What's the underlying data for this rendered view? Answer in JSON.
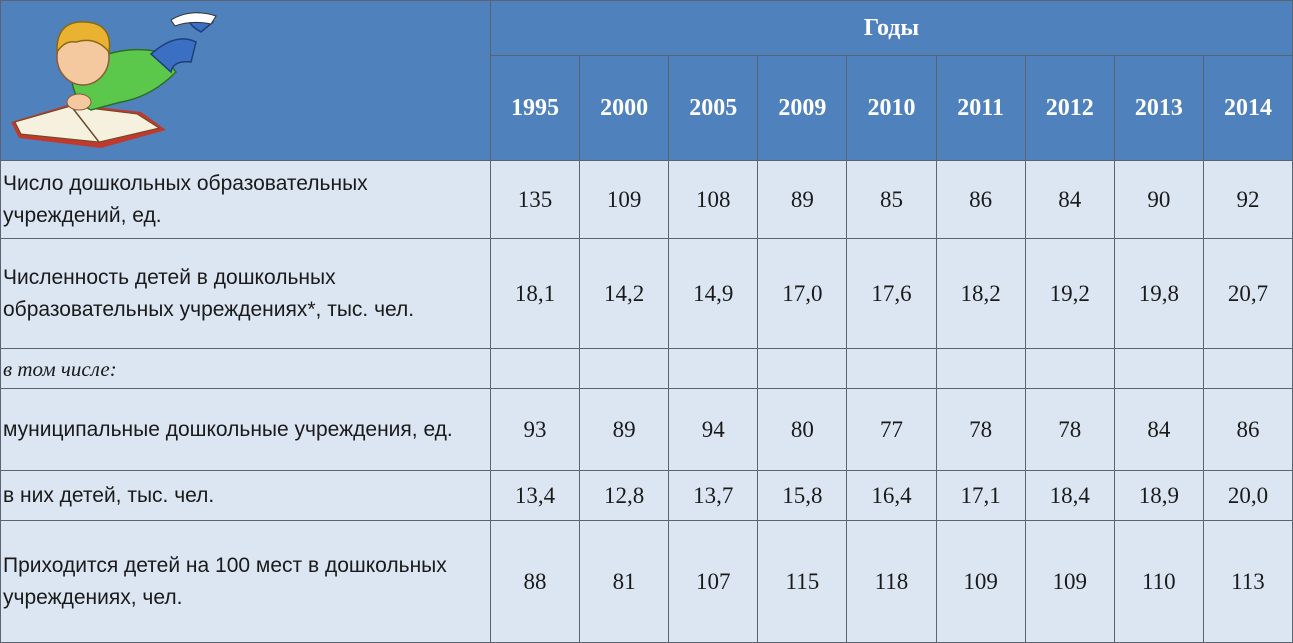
{
  "header": {
    "title": "Годы",
    "years": [
      1995,
      2000,
      2005,
      2009,
      2010,
      2011,
      2012,
      2013,
      2014
    ]
  },
  "table": {
    "rows": [
      {
        "label": "Число дошкольных образовательных учреждений, ед.",
        "values": [
          135,
          109,
          108,
          89,
          85,
          86,
          84,
          90,
          92
        ]
      },
      {
        "label": "Численность детей в дошкольных образовательных учреждениях*, тыс. чел.",
        "values": [
          "18,1",
          "14,2",
          "14,9",
          "17,0",
          "17,6",
          "18,2",
          "19,2",
          "19,8",
          "20,7"
        ]
      },
      {
        "label": "в том числе:"
      },
      {
        "label": "муниципальные дошкольные учреждения, ед.",
        "values": [
          93,
          89,
          94,
          80,
          77,
          78,
          78,
          84,
          86
        ]
      },
      {
        "label": "в них детей, тыс. чел.",
        "values": [
          "13,4",
          "12,8",
          "13,7",
          "15,8",
          "16,4",
          "17,1",
          "18,4",
          "18,9",
          "20,0"
        ]
      },
      {
        "label": "Приходится детей на 100 мест в дошкольных учреждениях, чел.",
        "values": [
          88,
          81,
          107,
          115,
          118,
          109,
          109,
          110,
          113
        ]
      }
    ]
  }
}
